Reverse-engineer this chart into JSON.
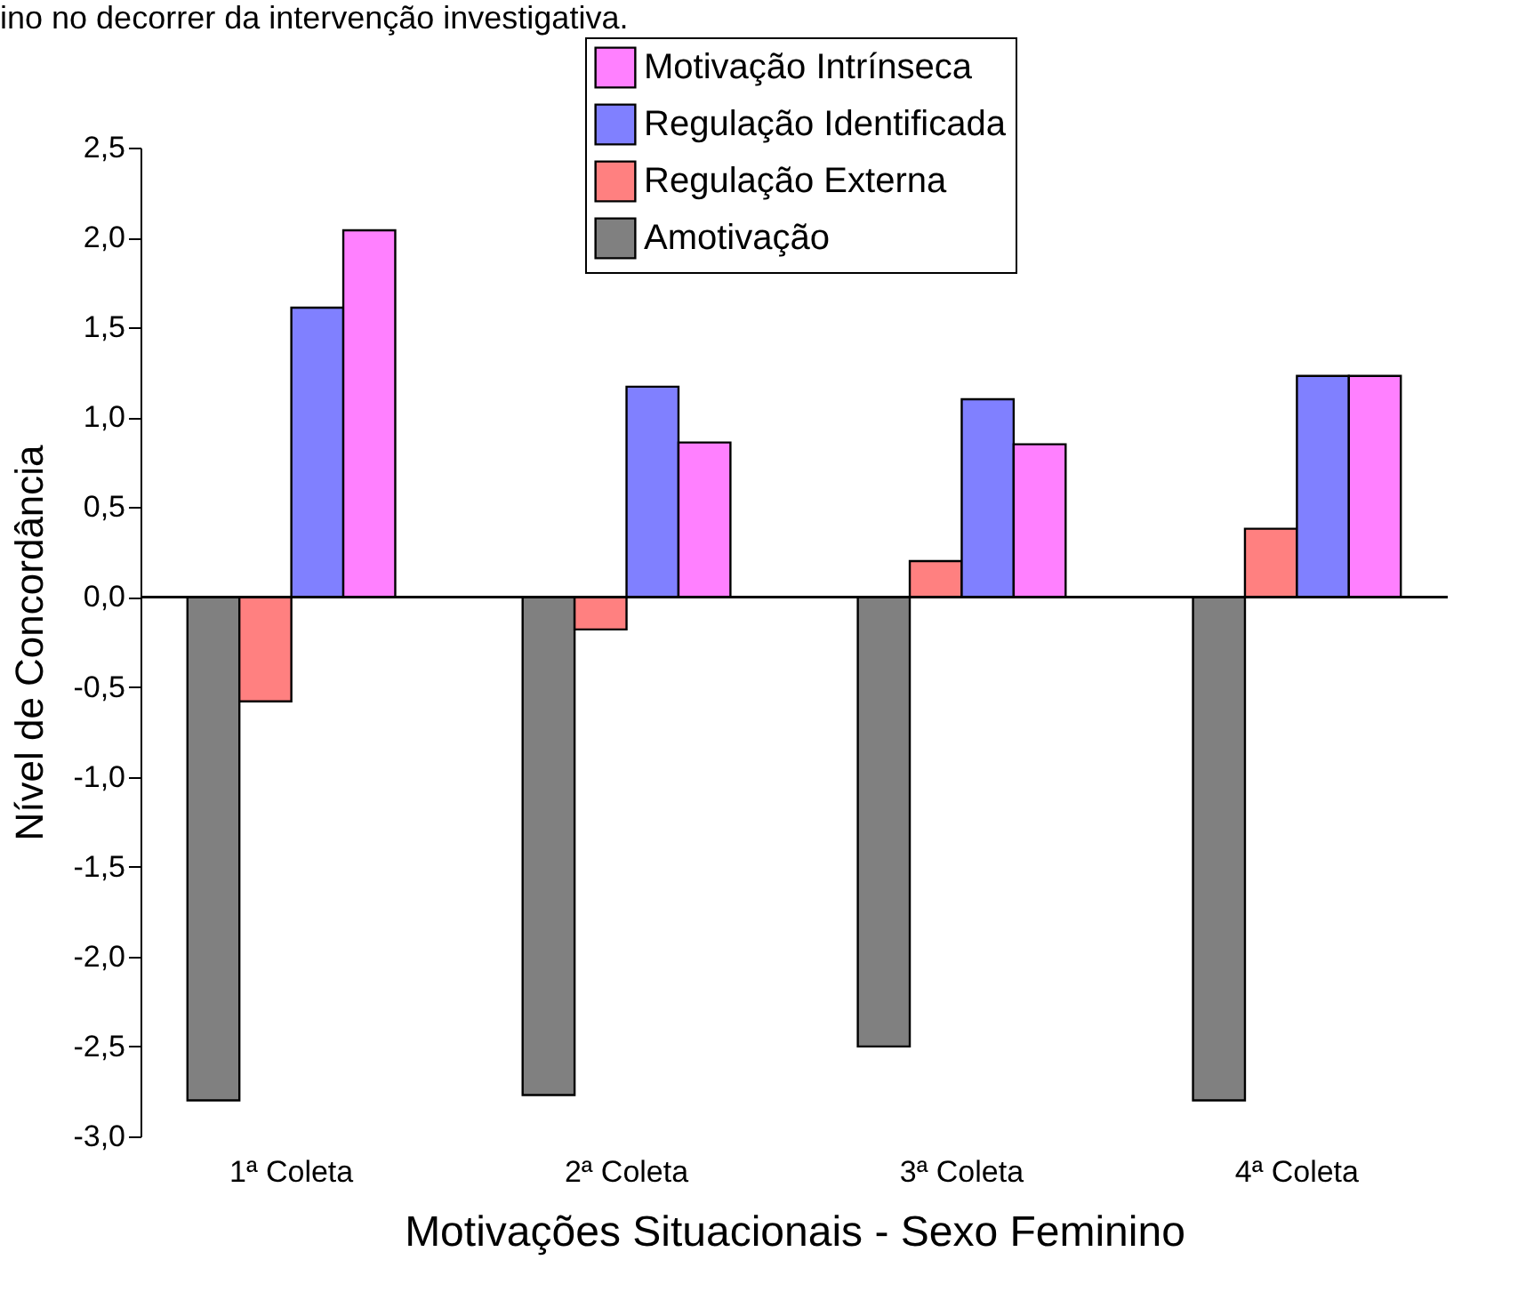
{
  "chart_data": {
    "type": "bar",
    "xlabel": "Motivações Situacionais - Sexo Feminino",
    "ylabel": "Nível de Concordância",
    "annotations": [
      "ino no decorrer da intervenção investigativa."
    ],
    "categories": [
      "1ª Coleta",
      "2ª Coleta",
      "3ª Coleta",
      "4ª Coleta"
    ],
    "series": [
      {
        "name": "Amotivação",
        "color": "#808080",
        "values": [
          -2.8,
          -2.77,
          -2.5,
          -2.8
        ]
      },
      {
        "name": "Regulação Externa",
        "color": "#ff8080",
        "values": [
          -0.58,
          -0.18,
          0.2,
          0.38
        ]
      },
      {
        "name": "Regulação Identificada",
        "color": "#8080ff",
        "values": [
          1.61,
          1.17,
          1.1,
          1.23
        ]
      },
      {
        "name": "Motivação Intrínseca",
        "color": "#ff80ff",
        "values": [
          2.04,
          0.86,
          0.85,
          1.23
        ]
      }
    ],
    "ylim": [
      -3,
      2.5
    ],
    "yticks": [
      {
        "value": -3,
        "label": "-3,0"
      },
      {
        "value": -2.5,
        "label": "-2,5"
      },
      {
        "value": -2,
        "label": "-2,0"
      },
      {
        "value": -1.5,
        "label": "-1,5"
      },
      {
        "value": -1,
        "label": "-1,0"
      },
      {
        "value": -0.5,
        "label": "-0,5"
      },
      {
        "value": 0,
        "label": "0,0"
      },
      {
        "value": 0.5,
        "label": "0,5"
      },
      {
        "value": 1,
        "label": "1,0"
      },
      {
        "value": 1.5,
        "label": "1,5"
      },
      {
        "value": 2,
        "label": "2,0"
      },
      {
        "value": 2.5,
        "label": "2,5"
      }
    ],
    "legend": "top right"
  }
}
